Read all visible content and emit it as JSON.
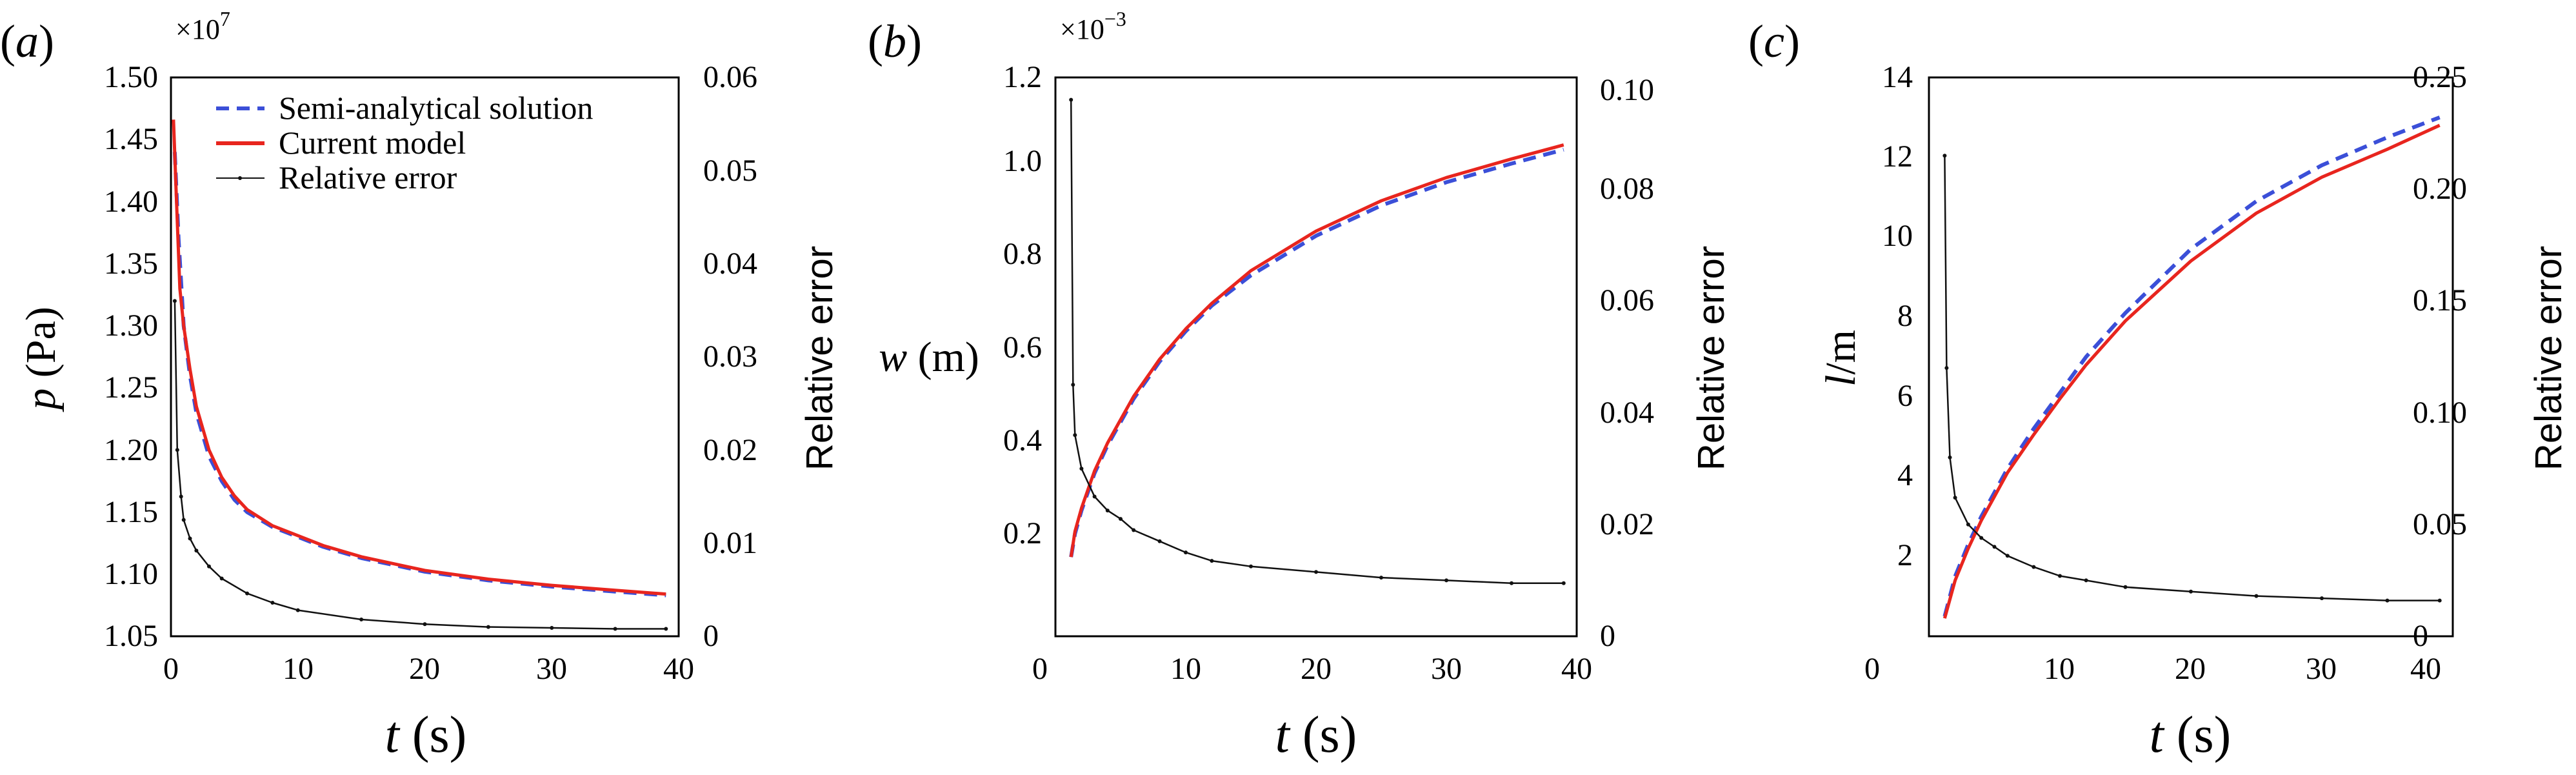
{
  "chart_data": [
    {
      "type": "line",
      "panel_label": "a",
      "xlabel_var": "t",
      "xlabel_unit": "(s)",
      "ylabel_var": "p",
      "ylabel_unit": "(Pa)",
      "y2label": "Relative error",
      "multiplier_base": "×10",
      "multiplier_exp": "7",
      "xlim": [
        0,
        40
      ],
      "ylim": [
        1.05,
        1.5
      ],
      "y2lim": [
        0,
        0.06
      ],
      "xticks": [
        "0",
        "10",
        "20",
        "30",
        "40"
      ],
      "yticks": [
        "1.05",
        "1.10",
        "1.15",
        "1.20",
        "1.25",
        "1.30",
        "1.35",
        "1.40",
        "1.45",
        "1.50"
      ],
      "y2ticks": [
        "0",
        "0.01",
        "0.02",
        "0.03",
        "0.04",
        "0.05",
        "0.06"
      ],
      "legend": {
        "position": "top-right",
        "entries": [
          "Semi-analytical solution",
          "Current model",
          "Relative error"
        ]
      },
      "series": [
        {
          "name": "Semi-analytical solution",
          "axis": "left",
          "color": "#3b4fd8",
          "style": "dashed",
          "x": [
            0.3,
            0.6,
            1,
            1.5,
            2,
            3,
            4,
            5,
            6,
            8,
            10,
            12,
            15,
            20,
            25,
            30,
            35,
            39
          ],
          "y": [
            1.44,
            1.37,
            1.3,
            1.26,
            1.23,
            1.195,
            1.175,
            1.16,
            1.15,
            1.138,
            1.13,
            1.122,
            1.113,
            1.102,
            1.095,
            1.09,
            1.086,
            1.083
          ]
        },
        {
          "name": "Current model",
          "axis": "left",
          "color": "#e8251e",
          "style": "solid",
          "x": [
            0.2,
            0.4,
            0.7,
            1,
            1.5,
            2,
            3,
            4,
            5,
            6,
            8,
            10,
            12,
            15,
            20,
            25,
            30,
            35,
            39
          ],
          "y": [
            1.466,
            1.41,
            1.33,
            1.3,
            1.265,
            1.235,
            1.2,
            1.178,
            1.163,
            1.152,
            1.139,
            1.131,
            1.123,
            1.114,
            1.103,
            1.096,
            1.091,
            1.087,
            1.084
          ]
        },
        {
          "name": "Relative error",
          "axis": "right",
          "color": "#111111",
          "style": "solid-dots",
          "x": [
            0.3,
            0.5,
            0.8,
            1,
            1.5,
            2,
            3,
            4,
            6,
            8,
            10,
            15,
            20,
            25,
            30,
            35,
            39
          ],
          "y": [
            0.036,
            0.02,
            0.015,
            0.0125,
            0.0105,
            0.0092,
            0.0075,
            0.0062,
            0.0046,
            0.0036,
            0.0028,
            0.0018,
            0.0013,
            0.001,
            0.0009,
            0.0008,
            0.0008
          ]
        }
      ]
    },
    {
      "type": "line",
      "panel_label": "b",
      "xlabel_var": "t",
      "xlabel_unit": "(s)",
      "ylabel_var": "w",
      "ylabel_unit": "(m)",
      "y2label": "Relative error",
      "multiplier_base": "×10",
      "multiplier_exp": "−3",
      "xlim": [
        0,
        40
      ],
      "ylim": [
        0,
        1.2
      ],
      "y2lim": [
        0,
        0.1
      ],
      "xticks": [
        "0",
        "10",
        "20",
        "30",
        "40"
      ],
      "yticks": [
        "0.2",
        "0.4",
        "0.6",
        "0.8",
        "1.0",
        "1.2"
      ],
      "y2ticks": [
        "0",
        "0.02",
        "0.04",
        "0.06",
        "0.08",
        "0.10"
      ],
      "series": [
        {
          "name": "Semi-analytical solution",
          "axis": "left",
          "color": "#3b4fd8",
          "style": "dashed",
          "x": [
            1.2,
            1.5,
            2,
            3,
            4,
            5,
            6,
            8,
            10,
            12,
            15,
            20,
            25,
            30,
            35,
            39
          ],
          "y": [
            0.17,
            0.22,
            0.27,
            0.35,
            0.41,
            0.46,
            0.51,
            0.59,
            0.655,
            0.71,
            0.775,
            0.86,
            0.925,
            0.975,
            1.015,
            1.045
          ]
        },
        {
          "name": "Current model",
          "axis": "left",
          "color": "#e8251e",
          "style": "solid",
          "x": [
            1.2,
            1.5,
            2,
            3,
            4,
            5,
            6,
            8,
            10,
            12,
            15,
            20,
            25,
            30,
            35,
            39
          ],
          "y": [
            0.17,
            0.225,
            0.275,
            0.355,
            0.415,
            0.465,
            0.515,
            0.595,
            0.66,
            0.715,
            0.785,
            0.87,
            0.935,
            0.985,
            1.025,
            1.055
          ]
        },
        {
          "name": "Relative error",
          "axis": "right",
          "color": "#111111",
          "style": "solid-dots",
          "x": [
            1.2,
            1.35,
            1.5,
            2,
            3,
            4,
            5,
            6,
            8,
            10,
            12,
            15,
            20,
            25,
            30,
            35,
            39
          ],
          "y": [
            0.096,
            0.045,
            0.036,
            0.03,
            0.025,
            0.0225,
            0.021,
            0.019,
            0.017,
            0.015,
            0.0135,
            0.0125,
            0.0115,
            0.0105,
            0.01,
            0.0095,
            0.0095
          ]
        }
      ]
    },
    {
      "type": "line",
      "panel_label": "c",
      "xlabel_var": "t",
      "xlabel_unit": "(s)",
      "ylabel_var": "l",
      "ylabel_unit": "/m",
      "y2label": "Relative error",
      "xlim": [
        0,
        40
      ],
      "ylim": [
        0,
        14
      ],
      "y2lim": [
        0,
        0.25
      ],
      "xticks": [
        "0",
        "10",
        "20",
        "30",
        "40"
      ],
      "yticks": [
        "2",
        "4",
        "6",
        "8",
        "10",
        "12",
        "14"
      ],
      "y2ticks": [
        "0",
        "0.05",
        "0.10",
        "0.15",
        "0.20",
        "0.25"
      ],
      "series": [
        {
          "name": "Semi-analytical solution",
          "axis": "left",
          "color": "#3b4fd8",
          "style": "dashed",
          "x": [
            1.2,
            2,
            3,
            4,
            5,
            6,
            8,
            10,
            12,
            15,
            20,
            25,
            30,
            35,
            39
          ],
          "y": [
            0.5,
            1.5,
            2.3,
            3.0,
            3.6,
            4.2,
            5.2,
            6.1,
            7.0,
            8.1,
            9.7,
            10.9,
            11.8,
            12.5,
            13.0
          ]
        },
        {
          "name": "Current model",
          "axis": "left",
          "color": "#e8251e",
          "style": "solid",
          "x": [
            1.2,
            2,
            3,
            4,
            5,
            6,
            8,
            10,
            12,
            15,
            20,
            25,
            30,
            35,
            39
          ],
          "y": [
            0.45,
            1.4,
            2.2,
            2.9,
            3.5,
            4.1,
            5.05,
            5.95,
            6.8,
            7.9,
            9.4,
            10.6,
            11.5,
            12.2,
            12.8
          ]
        },
        {
          "name": "Relative error",
          "axis": "right",
          "color": "#111111",
          "style": "solid-dots",
          "x": [
            1.2,
            1.35,
            1.6,
            2,
            3,
            4,
            5,
            6,
            8,
            10,
            12,
            15,
            20,
            25,
            30,
            35,
            39
          ],
          "y": [
            0.215,
            0.12,
            0.08,
            0.062,
            0.05,
            0.044,
            0.04,
            0.036,
            0.031,
            0.027,
            0.025,
            0.022,
            0.02,
            0.018,
            0.017,
            0.016,
            0.016
          ]
        }
      ]
    }
  ]
}
